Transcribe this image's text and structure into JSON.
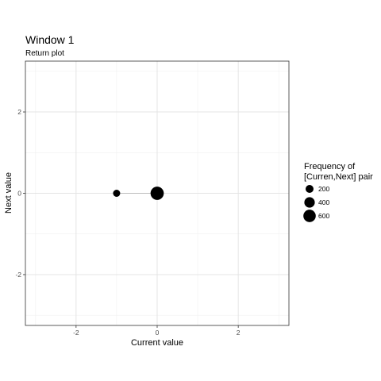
{
  "chart_data": {
    "type": "scatter",
    "title": "Window 1",
    "subtitle": "Return plot",
    "xlabel": "Current value",
    "ylabel": "Next value",
    "xlim": [
      -3.25,
      3.25
    ],
    "ylim": [
      -3.25,
      3.25
    ],
    "x_ticks": [
      -2,
      0,
      2
    ],
    "y_ticks": [
      -2,
      0,
      2
    ],
    "x_tick_labels": [
      "-2",
      "0",
      "2"
    ],
    "y_tick_labels": [
      "-2",
      "0",
      "2"
    ],
    "grid": true,
    "legend": {
      "title_lines": [
        "Frequency of",
        "[Curren,Next] pair"
      ],
      "position": "right",
      "entries": [
        {
          "label": "200",
          "size": 200
        },
        {
          "label": "400",
          "size": 400
        },
        {
          "label": "600",
          "size": 600
        }
      ]
    },
    "segments": [
      {
        "x0": -1,
        "y0": 0,
        "x1": 0,
        "y1": 0,
        "color": "#bdbdbd"
      }
    ],
    "points": [
      {
        "x": -1,
        "y": 0,
        "size": 150
      },
      {
        "x": 0,
        "y": 0,
        "size": 700
      }
    ],
    "point_color": "#000000"
  }
}
